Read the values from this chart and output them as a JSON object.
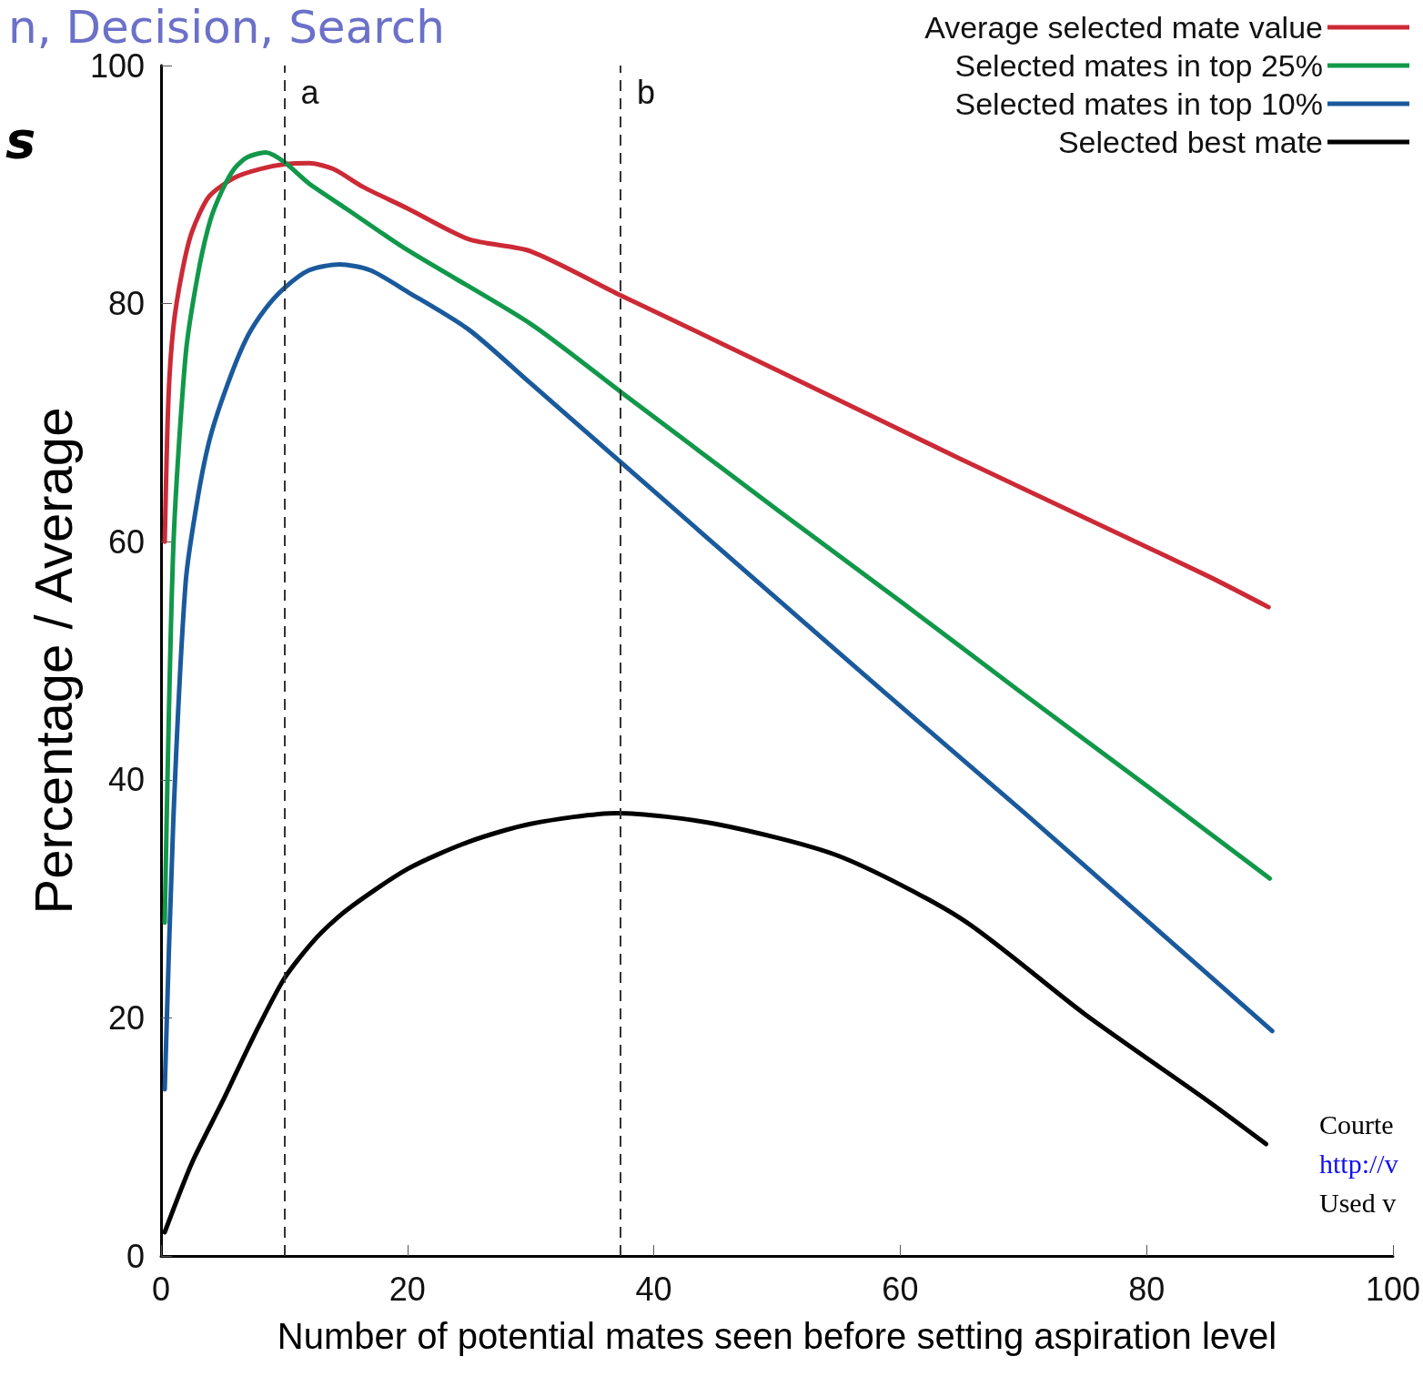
{
  "chart_data": {
    "type": "line",
    "title": "n, Decision, Search",
    "xlabel": "Number of potential mates seen before setting aspiration level",
    "ylabel": "Percentage / Average",
    "xlim": [
      0,
      100
    ],
    "xticks": [
      0,
      20,
      40,
      60,
      80,
      100
    ],
    "ylim": [
      0,
      100
    ],
    "yticks": [
      0,
      20,
      40,
      60,
      80,
      100
    ],
    "grid": false,
    "legend": "top right",
    "marker": "none",
    "line_style": "solid",
    "annotations": [
      "s",
      "Courte",
      "http://v",
      "Used v"
    ],
    "ref_lines": [
      {
        "axis": "x",
        "value": 10,
        "label": "a",
        "color": "#333333",
        "line_style": "dashed"
      },
      {
        "axis": "x",
        "value": 37.3,
        "label": "b",
        "color": "#333333",
        "line_style": "dashed"
      }
    ],
    "series": [
      {
        "name": "Average selected mate value",
        "color": "#cc2a36",
        "x": [
          0.3,
          0.6,
          1,
          1.7,
          2.5,
          3.9,
          6,
          8,
          10,
          12,
          14,
          16.4,
          20,
          25,
          30,
          37.3,
          45,
          55,
          65,
          75,
          85,
          89.9
        ],
        "values": [
          60,
          72,
          78,
          82.6,
          86,
          89,
          90.6,
          91.3,
          91.7,
          91.8,
          91.3,
          89.8,
          88,
          85.4,
          84.4,
          80.7,
          76.9,
          71.9,
          66.9,
          62,
          57.1,
          54.5
        ]
      },
      {
        "name": "Selected mates in top 25%",
        "color": "#11984a",
        "x": [
          0.3,
          1,
          2,
          3,
          4,
          5,
          6,
          7,
          8.5,
          10,
          12,
          15,
          20,
          30,
          37.3,
          50,
          60,
          70,
          80,
          90
        ],
        "values": [
          28,
          59.6,
          75.7,
          82.5,
          87,
          89.6,
          91.4,
          92.3,
          92.7,
          91.9,
          90.1,
          88,
          84.5,
          78.3,
          72.6,
          62.7,
          55,
          47.2,
          39.5,
          31.7
        ]
      },
      {
        "name": "Selected mates in top 10%",
        "color": "#1a5a9c",
        "x": [
          0.3,
          1,
          2,
          3,
          4,
          5.5,
          7,
          8.5,
          10,
          12,
          14.5,
          17,
          20,
          25,
          30,
          37.3,
          50,
          60,
          70,
          80,
          90.2
        ],
        "values": [
          14,
          36.7,
          56.6,
          63.8,
          68.8,
          73.5,
          77.2,
          79.6,
          81.3,
          82.8,
          83.3,
          82.8,
          81,
          77.8,
          73.3,
          66.7,
          55.2,
          46.2,
          37.3,
          28.2,
          18.9
        ]
      },
      {
        "name": "Selected best mate",
        "color": "#000000",
        "x": [
          0.3,
          2.5,
          5,
          7.5,
          10,
          12.5,
          15,
          20,
          25,
          30,
          37,
          45,
          55,
          65,
          75,
          85,
          89.7
        ],
        "values": [
          2,
          7.8,
          13,
          18.4,
          23.3,
          26.6,
          29,
          32.5,
          34.8,
          36.3,
          37.2,
          36.3,
          33.6,
          28.3,
          20.3,
          13,
          9.4
        ]
      }
    ]
  }
}
